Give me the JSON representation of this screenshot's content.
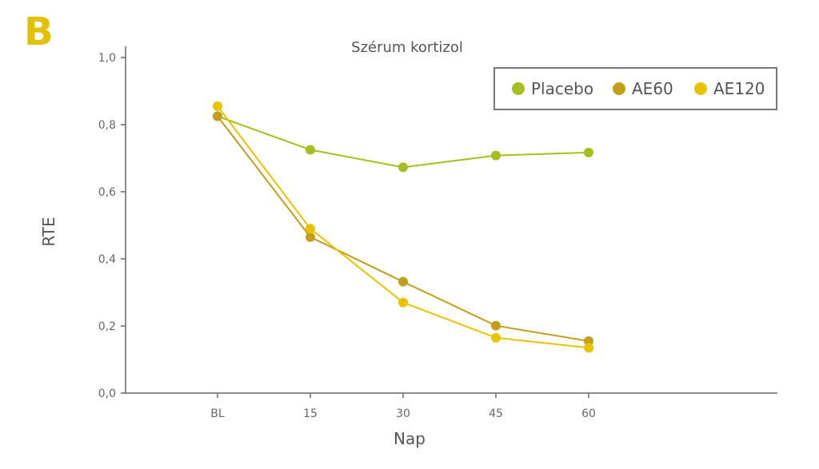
{
  "panel_label": "B",
  "chart_data": {
    "type": "line",
    "title": "Szérum kortizol",
    "xlabel": "Nap",
    "ylabel": "RTE",
    "categories": [
      "BL",
      "15",
      "30",
      "45",
      "60"
    ],
    "ylim": [
      0,
      1.0
    ],
    "yticks": [
      "0,0",
      "0,2",
      "0,4",
      "0,6",
      "0,8",
      "1,0"
    ],
    "ytick_values": [
      0,
      0.2,
      0.4,
      0.6,
      0.8,
      1.0
    ],
    "grid": false,
    "legend_position": "top-right",
    "series": [
      {
        "name": "Placebo",
        "color": "#a6bf1e",
        "values": [
          0.825,
          0.725,
          0.673,
          0.708,
          0.717
        ]
      },
      {
        "name": "AE60",
        "color": "#c39e1c",
        "values": [
          0.825,
          0.465,
          0.332,
          0.201,
          0.155
        ]
      },
      {
        "name": "AE120",
        "color": "#e8c300",
        "values": [
          0.855,
          0.49,
          0.27,
          0.165,
          0.135
        ]
      }
    ]
  }
}
